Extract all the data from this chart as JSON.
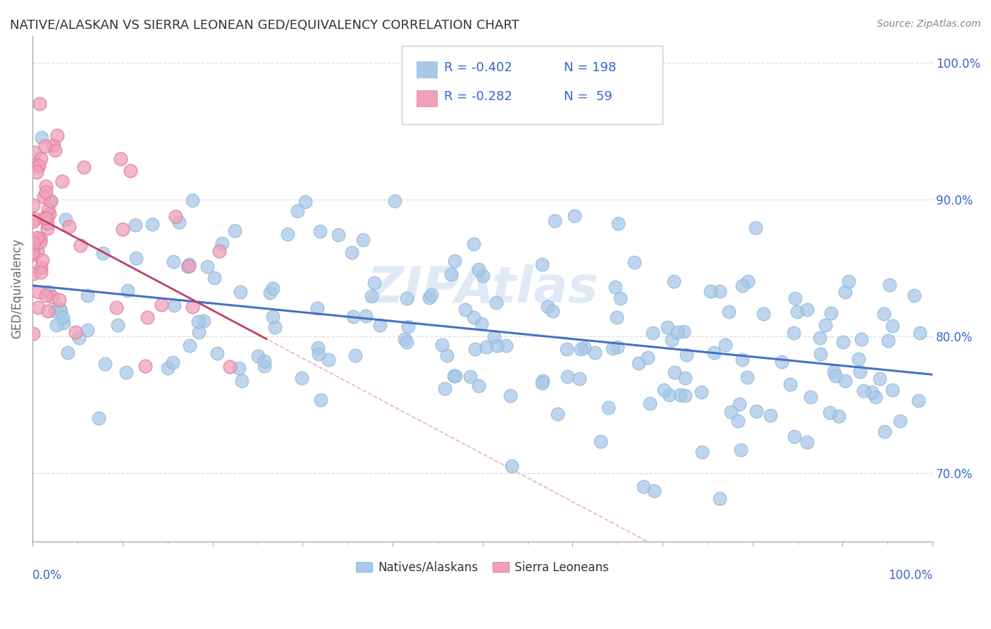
{
  "title": "NATIVE/ALASKAN VS SIERRA LEONEAN GED/EQUIVALENCY CORRELATION CHART",
  "source": "Source: ZipAtlas.com",
  "ylabel": "GED/Equivalency",
  "legend_label1": "Natives/Alaskans",
  "legend_label2": "Sierra Leoneans",
  "R1": "-0.402",
  "N1": "198",
  "R2": "-0.282",
  "N2": "59",
  "blue_dot_color": "#a8c8e8",
  "pink_dot_color": "#f0a0b8",
  "blue_edge_color": "#90b8d8",
  "pink_edge_color": "#e080a0",
  "blue_line_color": "#4472c4",
  "pink_line_color": "#c04060",
  "pink_dash_color": "#e8b0c0",
  "legend_text_color": "#3366cc",
  "watermark_color": "#ccddf0",
  "axis_color": "#aaaaaa",
  "grid_color": "#dddddd",
  "title_color": "#333333",
  "source_color": "#888888",
  "background_color": "#ffffff",
  "xlim": [
    0.0,
    1.0
  ],
  "ylim": [
    0.65,
    1.02
  ],
  "yticks": [
    0.7,
    0.8,
    0.9,
    1.0
  ],
  "ytick_labels": [
    "70.0%",
    "80.0%",
    "90.0%",
    "100.0%"
  ]
}
